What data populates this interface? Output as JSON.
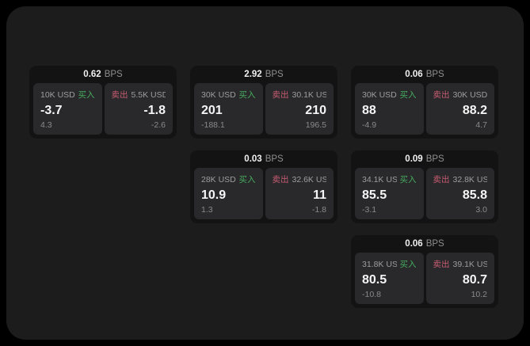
{
  "labels": {
    "unit": "BPS",
    "buy": "买入",
    "sell": "卖出"
  },
  "colors": {
    "buy": "#46ab5e",
    "sell": "#c75c72",
    "window_bg": "#1c1c1d",
    "card_bg": "#131314",
    "panel_bg": "#29292b"
  },
  "cards": [
    {
      "row": 1,
      "col": 1,
      "bps": "0.62",
      "buy": {
        "amount": "10K USD",
        "value": "-3.7",
        "sub": "4.3"
      },
      "sell": {
        "amount": "5.5K USD",
        "value": "-1.8",
        "sub": "-2.6"
      }
    },
    {
      "row": 1,
      "col": 2,
      "bps": "2.92",
      "buy": {
        "amount": "30K USD",
        "value": "201",
        "sub": "-188.1"
      },
      "sell": {
        "amount": "30.1K USD",
        "value": "210",
        "sub": "196.5"
      }
    },
    {
      "row": 1,
      "col": 3,
      "bps": "0.06",
      "buy": {
        "amount": "30K USD",
        "value": "88",
        "sub": "-4.9"
      },
      "sell": {
        "amount": "30K USD",
        "value": "88.2",
        "sub": "4.7"
      }
    },
    {
      "row": 2,
      "col": 2,
      "bps": "0.03",
      "buy": {
        "amount": "28K USD",
        "value": "10.9",
        "sub": "1.3"
      },
      "sell": {
        "amount": "32.6K USD",
        "value": "11",
        "sub": "-1.8"
      }
    },
    {
      "row": 2,
      "col": 3,
      "bps": "0.09",
      "buy": {
        "amount": "34.1K USD",
        "value": "85.5",
        "sub": "-3.1"
      },
      "sell": {
        "amount": "32.8K USD",
        "value": "85.8",
        "sub": "3.0"
      }
    },
    {
      "row": 3,
      "col": 3,
      "bps": "0.06",
      "buy": {
        "amount": "31.8K USD",
        "value": "80.5",
        "sub": "-10.8"
      },
      "sell": {
        "amount": "39.1K USD",
        "value": "80.7",
        "sub": "10.2"
      }
    }
  ]
}
